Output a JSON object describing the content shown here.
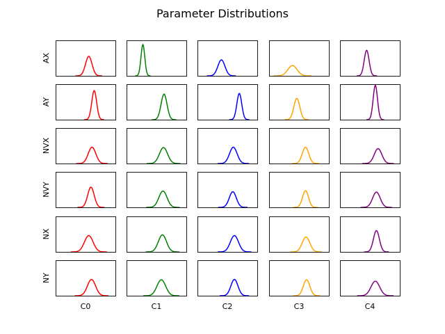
{
  "chart_data": {
    "type": "line",
    "title": "Parameter Distributions",
    "subplot_grid": "6 rows x 5 columns of density curves, no ticks, boxed axes",
    "row_labels": [
      "AX",
      "AY",
      "NVX",
      "NVY",
      "NX",
      "NY"
    ],
    "col_labels": [
      "C0",
      "C1",
      "C2",
      "C3",
      "C4"
    ],
    "col_colors": [
      "#ff0000",
      "#008000",
      "#0000ff",
      "#ffa500",
      "#800080"
    ],
    "x_domain": [
      0,
      1
    ],
    "y_domain": [
      0,
      1
    ],
    "curve_model": "gaussian density; each cell lists [mean, std, peak_height] in axes-fraction units",
    "cells": [
      [
        [
          0.56,
          0.06,
          0.55
        ],
        [
          0.25,
          0.035,
          0.88
        ],
        [
          0.39,
          0.065,
          0.45
        ],
        [
          0.38,
          0.085,
          0.29
        ],
        [
          0.44,
          0.045,
          0.72
        ]
      ],
      [
        [
          0.66,
          0.045,
          0.82
        ],
        [
          0.64,
          0.055,
          0.72
        ],
        [
          0.72,
          0.045,
          0.74
        ],
        [
          0.46,
          0.055,
          0.6
        ],
        [
          0.6,
          0.04,
          0.97
        ]
      ],
      [
        [
          0.62,
          0.07,
          0.46
        ],
        [
          0.63,
          0.075,
          0.45
        ],
        [
          0.61,
          0.07,
          0.46
        ],
        [
          0.62,
          0.06,
          0.46
        ],
        [
          0.65,
          0.07,
          0.42
        ]
      ],
      [
        [
          0.6,
          0.06,
          0.57
        ],
        [
          0.62,
          0.075,
          0.46
        ],
        [
          0.6,
          0.065,
          0.44
        ],
        [
          0.62,
          0.055,
          0.47
        ],
        [
          0.62,
          0.07,
          0.43
        ]
      ],
      [
        [
          0.56,
          0.08,
          0.46
        ],
        [
          0.61,
          0.075,
          0.48
        ],
        [
          0.63,
          0.075,
          0.46
        ],
        [
          0.63,
          0.07,
          0.42
        ],
        [
          0.62,
          0.055,
          0.6
        ]
      ],
      [
        [
          0.61,
          0.075,
          0.46
        ],
        [
          0.59,
          0.08,
          0.45
        ],
        [
          0.63,
          0.065,
          0.46
        ],
        [
          0.64,
          0.06,
          0.45
        ],
        [
          0.6,
          0.08,
          0.41
        ]
      ]
    ]
  }
}
